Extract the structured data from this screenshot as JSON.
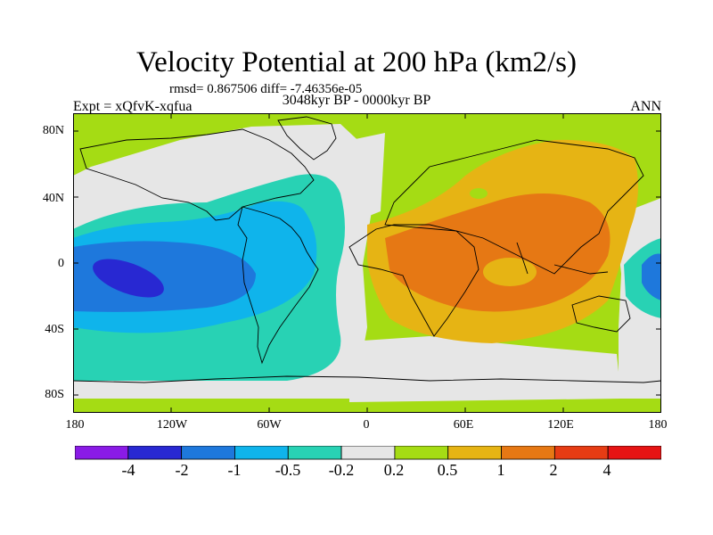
{
  "title": "Velocity Potential at 200 hPa (km2/s)",
  "stats": "rmsd= 0.867506 diff= -7.46356e-05",
  "subtitle": "3048kyr BP - 0000kyr BP",
  "left_label": "Expt = xQfvK-xqfua",
  "right_label": "ANN",
  "lat_ticks": [
    "80N",
    "40N",
    "0",
    "40S",
    "80S"
  ],
  "lon_ticks": [
    "180",
    "120W",
    "60W",
    "0",
    "60E",
    "120E",
    "180"
  ],
  "colorbar": {
    "labels": [
      "-4",
      "-2",
      "-1",
      "-0.5",
      "-0.2",
      "0.2",
      "0.5",
      "1",
      "2",
      "4"
    ],
    "colors": [
      "#8a1be6",
      "#2828d2",
      "#1e78dc",
      "#0fb4eb",
      "#28d2b4",
      "#e6e6e6",
      "#a5dc14",
      "#e6b414",
      "#e67814",
      "#e63c14",
      "#e61414"
    ]
  },
  "chart_data": {
    "type": "heatmap",
    "title": "Velocity Potential at 200 hPa (km2/s)",
    "subtitle": "3048kyr BP - 0000kyr BP",
    "x_range": [
      -180,
      180
    ],
    "y_range": [
      -90,
      90
    ],
    "levels": [
      -4,
      -2,
      -1,
      -0.5,
      -0.2,
      0.2,
      0.5,
      1,
      2,
      4
    ],
    "features": [
      {
        "region": "East Pacific (~150W, 15S)",
        "level_range": [
          -4,
          -2
        ]
      },
      {
        "region": "Tropical Pacific / South America / Atlantic",
        "level_range": [
          -1,
          -0.2
        ]
      },
      {
        "region": "Africa / Indian Ocean / Asia",
        "level_range": [
          1,
          2
        ]
      },
      {
        "region": "Southern high latitudes / North Atlantic",
        "level_range": [
          -0.2,
          0.2
        ]
      },
      {
        "region": "Arctic / mid-latitudes",
        "level_range": [
          0.2,
          0.5
        ]
      }
    ]
  }
}
